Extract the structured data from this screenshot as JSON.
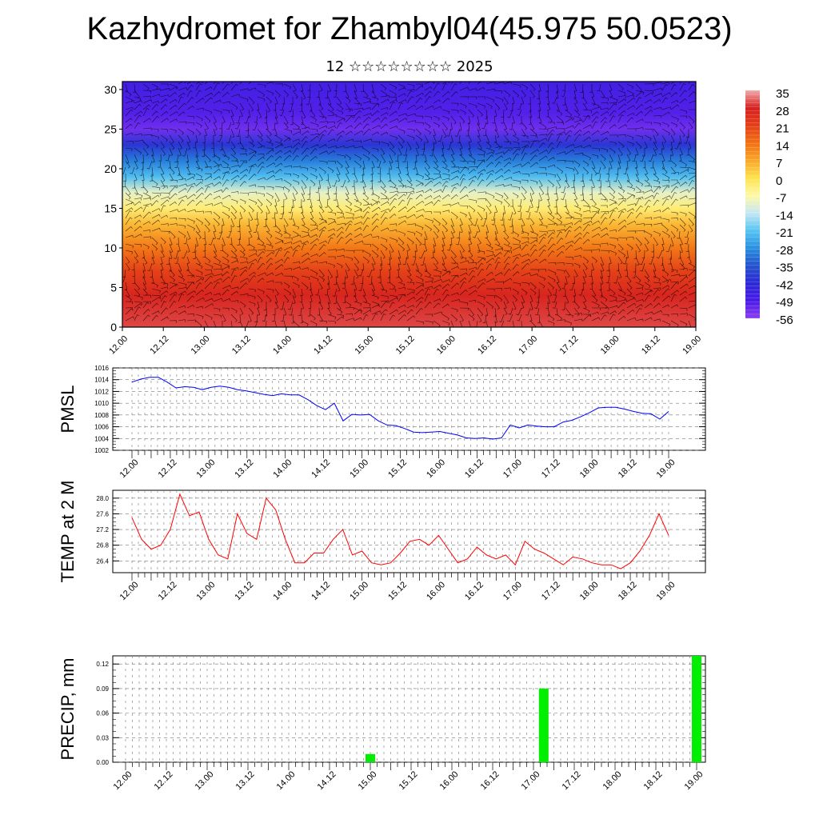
{
  "header": {
    "title": "Kazhydromet for Zhambyl04(45.975 50.0523)",
    "subtitle": "12 ☆☆☆☆☆☆☆☆ 2025"
  },
  "time_ticks": [
    "12.00",
    "12.12",
    "13.00",
    "13.12",
    "14.00",
    "14.12",
    "15.00",
    "15.12",
    "16.00",
    "16.12",
    "17.00",
    "17.12",
    "18.00",
    "18.12",
    "19.00"
  ],
  "chart_data": [
    {
      "type": "heatmap",
      "title": "Kazhydromet for Zhambyl04(45.975 50.0523)",
      "subtitle": "12 ☆☆☆☆☆☆☆☆ 2025",
      "x_tick_labels": [
        "12.00",
        "12.12",
        "13.00",
        "13.12",
        "14.00",
        "14.12",
        "15.00",
        "15.12",
        "16.00",
        "16.12",
        "17.00",
        "17.12",
        "18.00",
        "18.12",
        "19.00"
      ],
      "ylim": [
        0,
        31
      ],
      "y_ticks": [
        0,
        5,
        10,
        15,
        20,
        25,
        30
      ],
      "colorbar_labels": [
        "35",
        "28",
        "21",
        "14",
        "7",
        "0",
        "-7",
        "-14",
        "-21",
        "-28",
        "-35",
        "-42",
        "-49",
        "-56"
      ],
      "colorbar_colors": [
        "#f2a9a9",
        "#d62020",
        "#e44018",
        "#f27014",
        "#f9a72a",
        "#fde34e",
        "#fff9a8",
        "#c6e7f3",
        "#56c5f1",
        "#2a8fe0",
        "#2453cc",
        "#2c2ad6",
        "#4a1be8",
        "#8c3ef0"
      ],
      "temperature_profile": [
        {
          "z": 0,
          "t": 30
        },
        {
          "z": 4,
          "t": 27
        },
        {
          "z": 7,
          "t": 21
        },
        {
          "z": 10,
          "t": 13
        },
        {
          "z": 13,
          "t": 5
        },
        {
          "z": 15,
          "t": -3
        },
        {
          "z": 17,
          "t": -10
        },
        {
          "z": 19,
          "t": -22
        },
        {
          "z": 21,
          "t": -30
        },
        {
          "z": 23,
          "t": -40
        },
        {
          "z": 25,
          "t": -53
        },
        {
          "z": 27,
          "t": -50
        },
        {
          "z": 31,
          "t": -47
        }
      ],
      "wind_barbs": true
    },
    {
      "type": "line",
      "ylabel": "PMSL",
      "ylim": [
        1002,
        1016
      ],
      "y_ticks": [
        "1002",
        "1004",
        "1006",
        "1008",
        "1010",
        "1012",
        "1014",
        "1016"
      ],
      "x_tick_labels": [
        "12.00",
        "12.12",
        "13.00",
        "13.12",
        "14.00",
        "14.12",
        "15.00",
        "15.12",
        "16.00",
        "16.12",
        "17.00",
        "17.12",
        "18.00",
        "18.12",
        "19.00"
      ],
      "color": "#0000ff",
      "values": [
        1013.6,
        1014.1,
        1014.4,
        1014.4,
        1013.6,
        1012.6,
        1012.8,
        1012.7,
        1012.3,
        1012.7,
        1012.9,
        1012.7,
        1012.3,
        1012.1,
        1011.8,
        1011.5,
        1011.3,
        1011.6,
        1011.4,
        1011.4,
        1010.6,
        1009.6,
        1008.9,
        1010.0,
        1007.0,
        1008.1,
        1008.0,
        1008.1,
        1007.0,
        1006.3,
        1006.2,
        1005.7,
        1005.1,
        1005.0,
        1005.1,
        1005.2,
        1004.9,
        1004.6,
        1004.1,
        1004.0,
        1004.1,
        1003.9,
        1004.1,
        1006.3,
        1005.8,
        1006.3,
        1006.1,
        1006.0,
        1006.0,
        1006.8,
        1007.1,
        1007.7,
        1008.4,
        1009.2,
        1009.3,
        1009.3,
        1009.0,
        1008.6,
        1008.3,
        1008.2,
        1007.3,
        1008.6
      ]
    },
    {
      "type": "line",
      "ylabel": "TEMP at 2 M",
      "ylim": [
        26.1,
        28.2
      ],
      "y_ticks": [
        "26.4",
        "26.8",
        "27.2",
        "27.6",
        "28.0"
      ],
      "x_tick_labels": [
        "12.00",
        "12.12",
        "13.00",
        "13.12",
        "14.00",
        "14.12",
        "15.00",
        "15.12",
        "16.00",
        "16.12",
        "17.00",
        "17.12",
        "18.00",
        "18.12",
        "19.00"
      ],
      "color": "#ff0000",
      "values": [
        27.5,
        26.95,
        26.7,
        26.8,
        27.2,
        28.1,
        27.55,
        27.65,
        26.95,
        26.55,
        26.45,
        27.6,
        27.1,
        26.95,
        28.0,
        27.7,
        26.95,
        26.35,
        26.35,
        26.6,
        26.6,
        26.95,
        27.2,
        26.55,
        26.65,
        26.35,
        26.3,
        26.35,
        26.6,
        26.9,
        26.95,
        26.8,
        27.05,
        26.7,
        26.35,
        26.45,
        26.75,
        26.55,
        26.45,
        26.55,
        26.3,
        26.9,
        26.7,
        26.6,
        26.45,
        26.3,
        26.5,
        26.45,
        26.35,
        26.3,
        26.3,
        26.2,
        26.35,
        26.65,
        27.05,
        27.6,
        27.05
      ]
    },
    {
      "type": "bar",
      "ylabel": "PRECIP, mm",
      "ylim": [
        0,
        0.13
      ],
      "y_ticks": [
        "0.00",
        "0.03",
        "0.06",
        "0.09",
        "0.12"
      ],
      "x_tick_labels": [
        "12.00",
        "12.12",
        "13.00",
        "13.12",
        "14.00",
        "14.12",
        "15.00",
        "15.12",
        "16.00",
        "16.12",
        "17.00",
        "17.12",
        "18.00",
        "18.12",
        "19.00"
      ],
      "color": "#00ee00",
      "bars": [
        {
          "time": "15.00",
          "value": 0.01
        },
        {
          "time": "17.03",
          "value": 0.09
        },
        {
          "time": "19.00",
          "value": 0.13
        }
      ]
    }
  ]
}
